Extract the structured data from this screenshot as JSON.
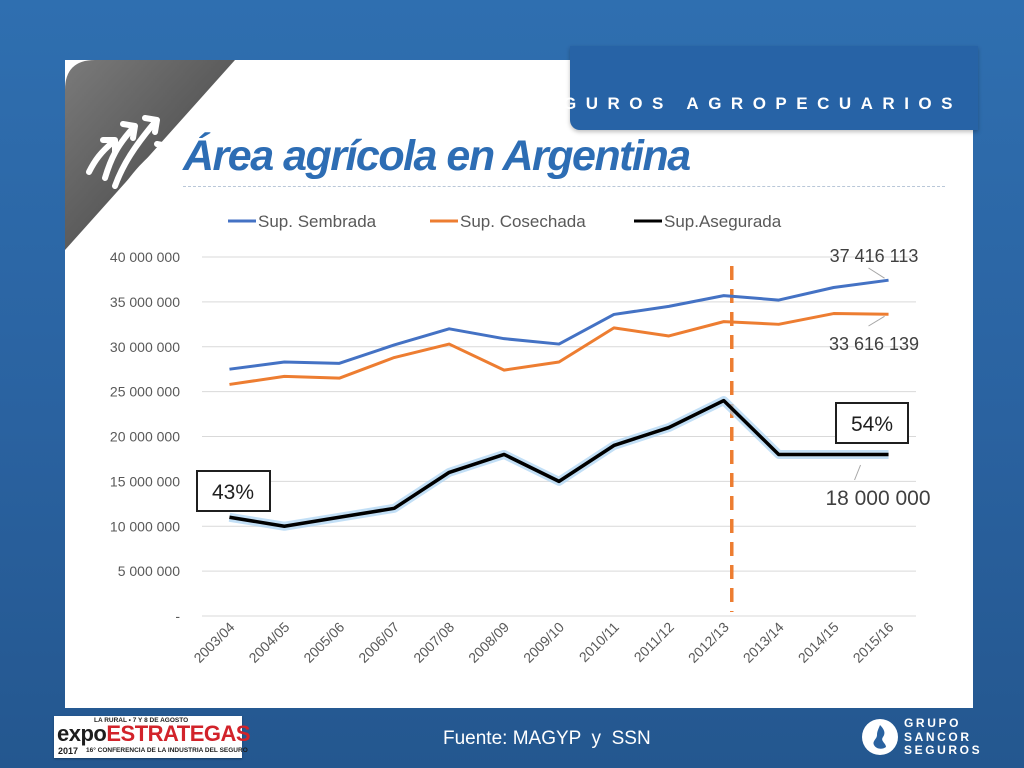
{
  "header": {
    "banner_text": "SEGUROS AGROPECUARIOS",
    "title": "Área agrícola en Argentina",
    "badge_icon": "arrows-up-icon"
  },
  "footer": {
    "source": "Fuente: MAGYP  y  SSN",
    "left_logo": {
      "top_line": "LA RURAL • 7 Y 8 DE AGOSTO",
      "word_a": "expo",
      "word_b": "ESTRATEGAS",
      "year": "2017",
      "conference": "16° CONFERENCIA DE LA INDUSTRIA DEL SEGURO"
    },
    "right_logo": {
      "lines": [
        "GRUPO",
        "SANCOR",
        "SEGUROS"
      ]
    }
  },
  "colors": {
    "sembrada": "#4472c4",
    "cosechada": "#ed7d31",
    "asegurada": "#000000",
    "marker": "#ed7d31",
    "title": "#2d6db4",
    "banner": "#2763a6"
  },
  "chart_data": {
    "type": "line",
    "categories": [
      "2003/04",
      "2004/05",
      "2005/06",
      "2006/07",
      "2007/08",
      "2008/09",
      "2009/10",
      "2010/11",
      "2011/12",
      "2012/13",
      "2013/14",
      "2014/15",
      "2015/16"
    ],
    "series": [
      {
        "name": "Sup. Sembrada",
        "values": [
          27500000,
          28300000,
          28150000,
          30200000,
          32000000,
          30900000,
          30300000,
          33600000,
          34500000,
          35700000,
          35200000,
          36600000,
          37416113
        ]
      },
      {
        "name": "Sup. Cosechada",
        "values": [
          25800000,
          26700000,
          26500000,
          28800000,
          30300000,
          27400000,
          28300000,
          32100000,
          31200000,
          32800000,
          32500000,
          33700000,
          33616139
        ]
      },
      {
        "name": "Sup.Asegurada",
        "values": [
          11000000,
          10000000,
          11000000,
          12000000,
          16000000,
          18000000,
          15000000,
          19000000,
          21000000,
          24000000,
          18000000,
          18000000,
          18000000
        ]
      }
    ],
    "y_ticks": [
      {
        "value": 40000000,
        "label": "40 000 000"
      },
      {
        "value": 35000000,
        "label": "35 000 000"
      },
      {
        "value": 30000000,
        "label": "30 000 000"
      },
      {
        "value": 25000000,
        "label": "25 000 000"
      },
      {
        "value": 20000000,
        "label": "20 000 000"
      },
      {
        "value": 15000000,
        "label": "15 000 000"
      },
      {
        "value": 10000000,
        "label": "10 000 000"
      },
      {
        "value": 5000000,
        "label": "5 000 000"
      },
      {
        "value": 0,
        "label": "-"
      }
    ],
    "ylim": [
      0,
      40000000
    ],
    "title": "",
    "xlabel": "",
    "ylabel": "",
    "grid": true,
    "legend": "top",
    "annotations": {
      "sembrada_end": "37 416 113",
      "cosechada_end": "33 616 139",
      "asegurada_end": "18 000 000",
      "start_pct": "43%",
      "end_pct": "54%",
      "marker_category": "2012/13"
    }
  }
}
